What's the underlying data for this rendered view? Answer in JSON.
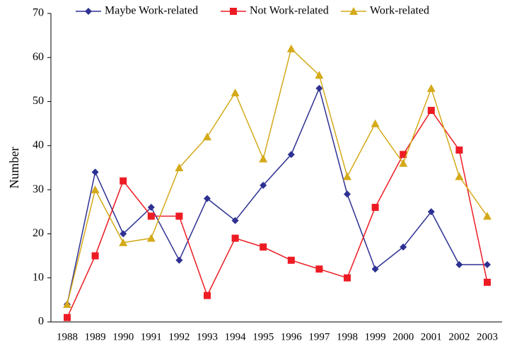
{
  "chart_data": {
    "type": "line",
    "ylabel": "Number",
    "categories": [
      "1988",
      "1989",
      "1990",
      "1991",
      "1992",
      "1993",
      "1994",
      "1995",
      "1996",
      "1997",
      "1998",
      "1999",
      "2000",
      "2001",
      "2002",
      "2003"
    ],
    "series": [
      {
        "name": "Maybe Work-related",
        "color": "#2e3192",
        "marker": "diamond",
        "values": [
          4,
          34,
          20,
          26,
          14,
          28,
          23,
          31,
          38,
          53,
          29,
          12,
          17,
          25,
          13,
          13
        ]
      },
      {
        "name": "Not Work-related",
        "color": "#ed1c24",
        "marker": "square",
        "values": [
          1,
          15,
          32,
          24,
          24,
          6,
          19,
          17,
          14,
          12,
          10,
          26,
          38,
          48,
          39,
          9
        ]
      },
      {
        "name": "Work-related",
        "color": "#d4aa1a",
        "marker": "triangle",
        "values": [
          4,
          30,
          18,
          19,
          35,
          42,
          52,
          37,
          62,
          56,
          33,
          45,
          36,
          53,
          33,
          24
        ]
      }
    ],
    "ylim": [
      0,
      70
    ],
    "yticks": [
      0,
      10,
      20,
      30,
      40,
      50,
      60,
      70
    ],
    "legend": "top"
  }
}
